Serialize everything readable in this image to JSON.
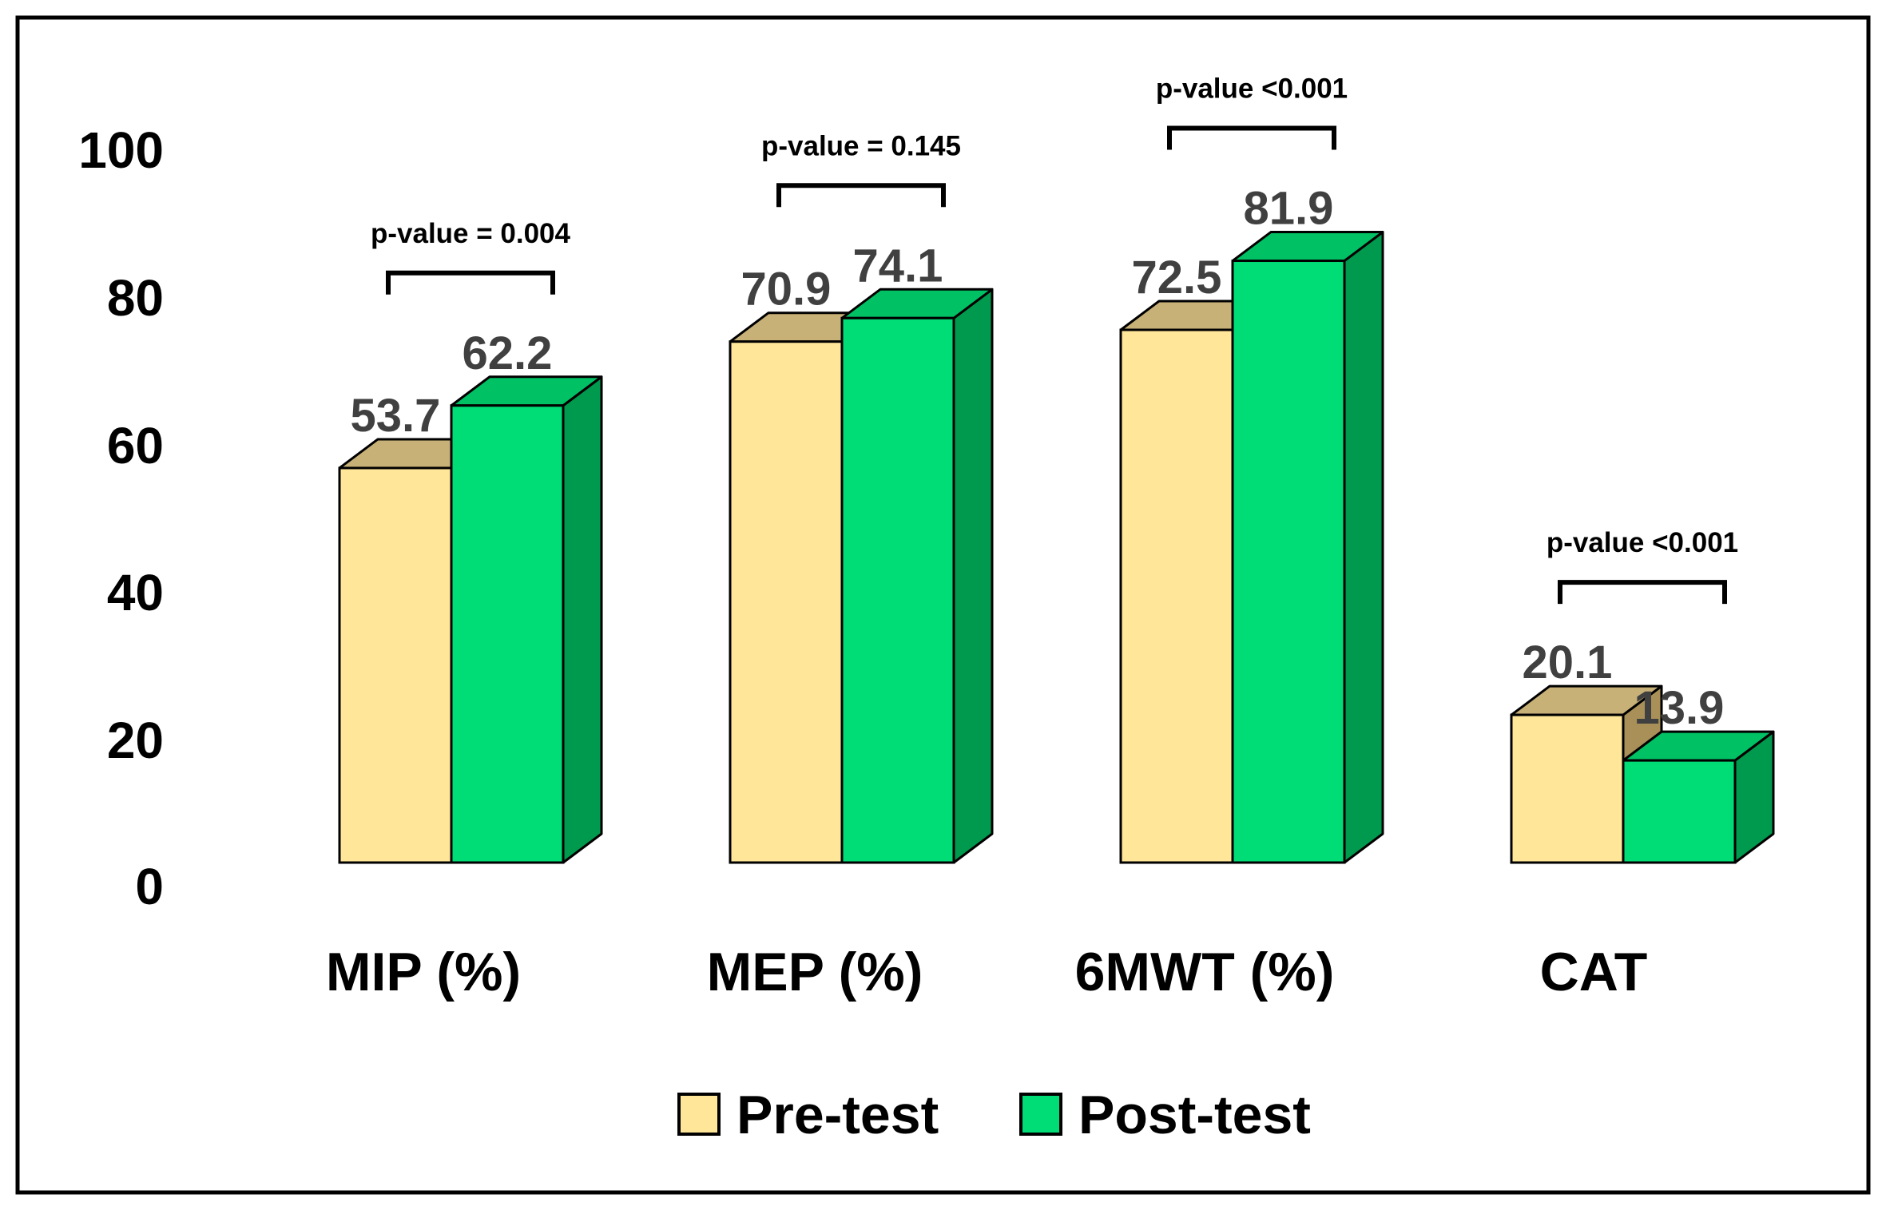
{
  "chart_data": {
    "type": "bar",
    "categories": [
      "MIP (%)",
      "MEP (%)",
      "6MWT (%)",
      "CAT"
    ],
    "series": [
      {
        "name": "Pre-test",
        "values": [
          53.7,
          70.9,
          72.5,
          20.1
        ],
        "color": "#FFE699",
        "top_color": "#C8B177",
        "side_color": "#A89058"
      },
      {
        "name": "Post-test",
        "values": [
          62.2,
          74.1,
          81.9,
          13.9
        ],
        "color": "#00DD77",
        "top_color": "#00C265",
        "side_color": "#009A4E"
      }
    ],
    "value_labels": [
      [
        "53.7",
        "70.9",
        "72.5",
        "20.1"
      ],
      [
        "62.2",
        "74.1",
        "81.9",
        "13.9"
      ]
    ],
    "p_values": [
      "p-value = 0.004",
      "p-value = 0.145",
      "p-value <0.001",
      "p-value <0.001"
    ],
    "yticks": [
      "0",
      "20",
      "40",
      "60",
      "80",
      "100"
    ],
    "ylim": [
      0,
      100
    ],
    "title": "",
    "xlabel": "",
    "ylabel": "",
    "legend_position": "bottom-center",
    "grid": false
  }
}
